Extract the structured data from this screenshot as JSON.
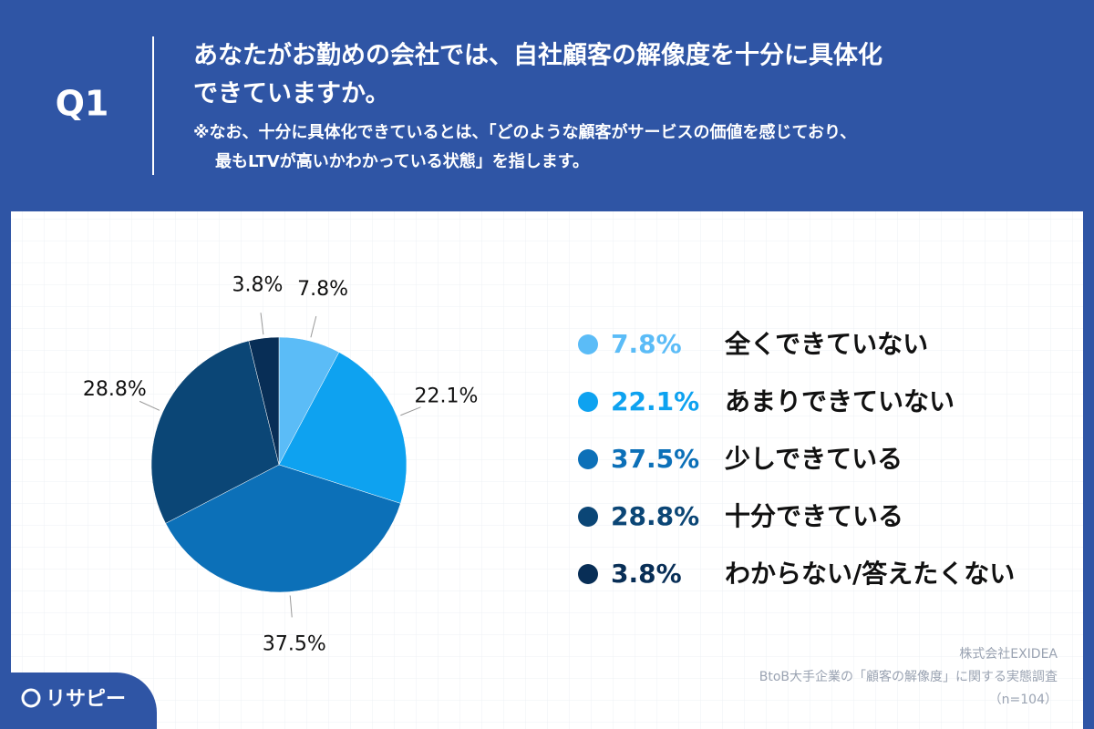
{
  "header": {
    "label": "Q1",
    "title": [
      "あなたがお勤めの会社では、自社顧客の解像度を十分に具体化",
      "できていますか。"
    ],
    "note": [
      "※なお、十分に具体化できているとは、「どのような顧客がサービスの価値を感じており、",
      "最もLTVが高いかわかっている状態」を指します。"
    ]
  },
  "chart_data": {
    "type": "pie",
    "categories": [
      "全くできていない",
      "あまりできていない",
      "少しできている",
      "十分できている",
      "わからない/答えたくない"
    ],
    "values": [
      7.8,
      22.1,
      37.5,
      28.8,
      3.8
    ],
    "value_labels": [
      "7.8%",
      "22.1%",
      "37.5%",
      "28.8%",
      "3.8%"
    ],
    "colors": [
      "#5bbcf7",
      "#0ea2f0",
      "#0c70b8",
      "#0b4676",
      "#082e56"
    ]
  },
  "source": [
    "株式会社EXIDEA",
    "BtoB大手企業の「顧客の解像度」に関する実態調査",
    "（n=104）"
  ],
  "logo": "リサピー"
}
